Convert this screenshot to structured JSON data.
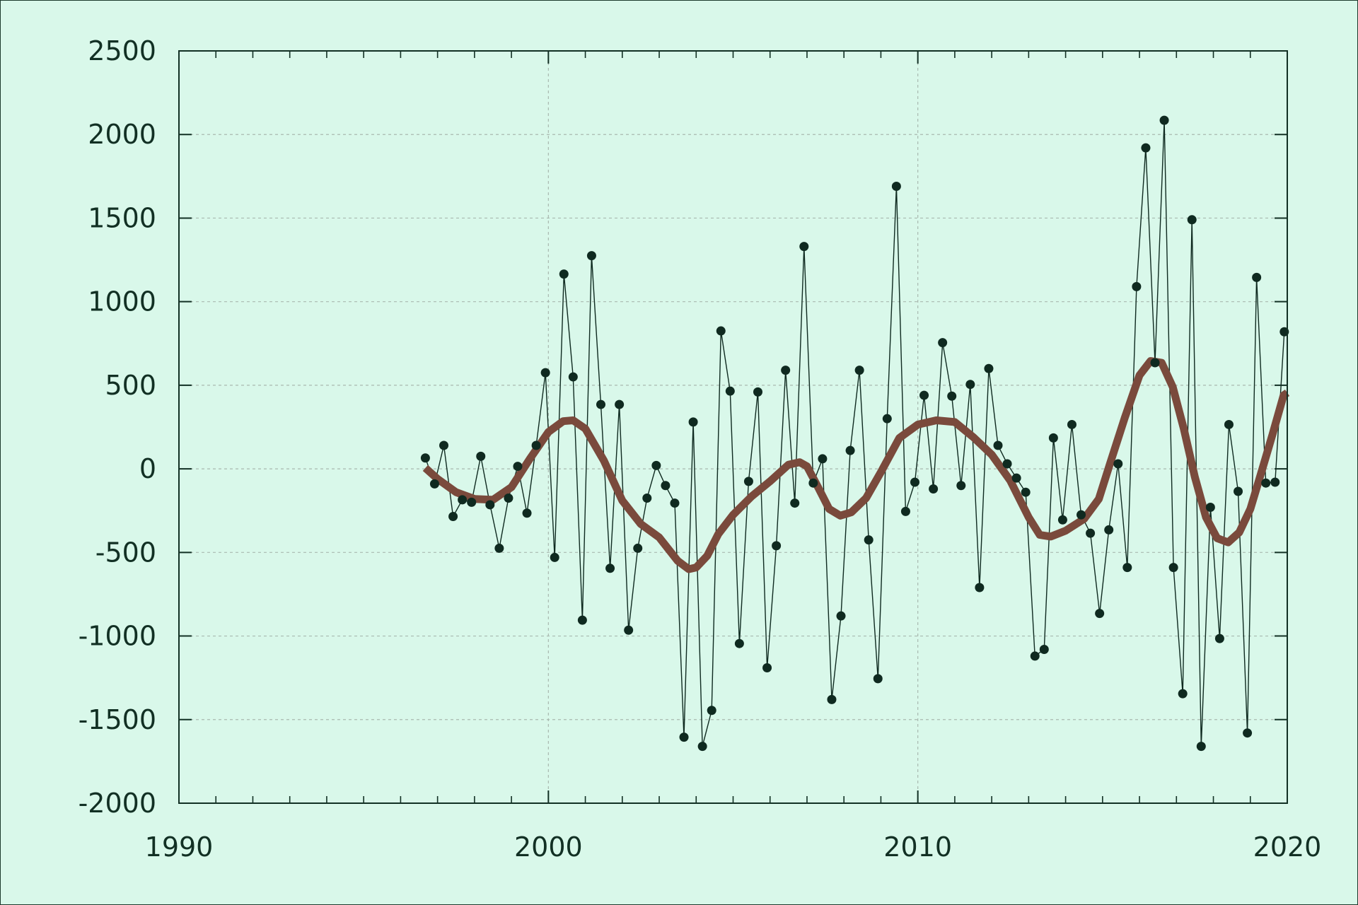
{
  "chart_data": {
    "type": "line",
    "title": "",
    "xlabel": "",
    "ylabel": "",
    "xlim": [
      1990,
      2020
    ],
    "ylim": [
      -2000,
      2500
    ],
    "x_ticks": [
      1990,
      2000,
      2010,
      2020
    ],
    "x_tick_labels": [
      "1990",
      "2000",
      "2010",
      "2020"
    ],
    "y_ticks": [
      2500,
      2000,
      1500,
      1000,
      500,
      0,
      -500,
      -1000,
      -1500,
      -2000
    ],
    "y_tick_labels": [
      "2500",
      "2000",
      "1500",
      "1000",
      "500",
      "0",
      "-500",
      "-1000",
      "-1500",
      "-2000"
    ],
    "grid": true,
    "legend": "none",
    "colors": {
      "background": "#d9f8ea",
      "raw_series": "#0f2a20",
      "smooth_series": "#7a4a3c",
      "grid": "#a9b9b0",
      "axis": "#123024"
    },
    "series": [
      {
        "style": "thin line with dot markers",
        "x": [
          1996.67,
          1996.92,
          1997.17,
          1997.42,
          1997.67,
          1997.92,
          1998.17,
          1998.42,
          1998.67,
          1998.92,
          1999.17,
          1999.42,
          1999.67,
          1999.92,
          2000.17,
          2000.42,
          2000.67,
          2000.92,
          2001.17,
          2001.42,
          2001.67,
          2001.92,
          2002.17,
          2002.42,
          2002.67,
          2002.92,
          2003.17,
          2003.42,
          2003.67,
          2003.92,
          2004.17,
          2004.42,
          2004.67,
          2004.92,
          2005.17,
          2005.42,
          2005.67,
          2005.92,
          2006.17,
          2006.42,
          2006.67,
          2006.92,
          2007.17,
          2007.42,
          2007.67,
          2007.92,
          2008.17,
          2008.42,
          2008.67,
          2008.92,
          2009.17,
          2009.42,
          2009.67,
          2009.92,
          2010.17,
          2010.42,
          2010.67,
          2010.92,
          2011.17,
          2011.42,
          2011.67,
          2011.92,
          2012.17,
          2012.42,
          2012.67,
          2012.92,
          2013.17,
          2013.42,
          2013.67,
          2013.92,
          2014.17,
          2014.42,
          2014.67,
          2014.92,
          2015.17,
          2015.42,
          2015.67,
          2015.92,
          2016.17,
          2016.42,
          2016.67,
          2016.92,
          2017.17,
          2017.42,
          2017.67,
          2017.92,
          2018.17,
          2018.42,
          2018.67,
          2018.92,
          2019.17,
          2019.42,
          2019.67,
          2019.92
        ],
        "values": [
          65,
          -90,
          140,
          -285,
          -185,
          -200,
          75,
          -215,
          -475,
          -175,
          15,
          -265,
          140,
          575,
          -530,
          1165,
          550,
          -905,
          1275,
          385,
          -595,
          385,
          -965,
          -475,
          -175,
          20,
          -100,
          -205,
          -1605,
          280,
          -1660,
          -1445,
          825,
          465,
          -1045,
          -75,
          460,
          -1190,
          -460,
          590,
          -205,
          1330,
          -85,
          60,
          -1380,
          -880,
          110,
          590,
          -425,
          -1255,
          300,
          1690,
          -255,
          -80,
          440,
          -120,
          755,
          435,
          -100,
          505,
          -710,
          600,
          140,
          30,
          -55,
          -140,
          -1120,
          -1080,
          185,
          -305,
          265,
          -275,
          -385,
          -865,
          -365,
          30,
          -590,
          1090,
          1920,
          635,
          2085,
          -590,
          -1345,
          1490,
          -1660,
          -230,
          -1015,
          265,
          -135,
          -1580,
          1145,
          -85,
          -80,
          820
        ]
      },
      {
        "style": "thick smoothed line",
        "x": [
          1996.67,
          1997.0,
          1997.5,
          1998.0,
          1998.5,
          1999.0,
          1999.5,
          2000.0,
          2000.4,
          2000.67,
          2001.0,
          2001.5,
          2002.0,
          2002.5,
          2003.0,
          2003.5,
          2003.8,
          2004.0,
          2004.3,
          2004.6,
          2005.0,
          2005.5,
          2006.0,
          2006.5,
          2006.8,
          2007.0,
          2007.3,
          2007.6,
          2007.9,
          2008.2,
          2008.6,
          2009.0,
          2009.5,
          2010.0,
          2010.5,
          2011.0,
          2011.5,
          2012.0,
          2012.5,
          2013.0,
          2013.3,
          2013.6,
          2014.0,
          2014.5,
          2014.9,
          2015.2,
          2015.6,
          2016.0,
          2016.3,
          2016.6,
          2016.9,
          2017.2,
          2017.5,
          2017.8,
          2018.1,
          2018.4,
          2018.7,
          2019.0,
          2019.3,
          2019.6,
          2019.9,
          2020.0
        ],
        "values": [
          5,
          -60,
          -140,
          -180,
          -185,
          -110,
          60,
          220,
          285,
          290,
          240,
          50,
          -190,
          -330,
          -410,
          -550,
          -600,
          -590,
          -520,
          -390,
          -275,
          -165,
          -75,
          25,
          40,
          15,
          -110,
          -240,
          -280,
          -260,
          -175,
          -20,
          185,
          265,
          290,
          280,
          190,
          85,
          -70,
          -290,
          -395,
          -405,
          -370,
          -300,
          -180,
          30,
          305,
          560,
          645,
          635,
          490,
          240,
          -50,
          -290,
          -415,
          -440,
          -380,
          -240,
          -20,
          205,
          440,
          455
        ]
      }
    ]
  }
}
